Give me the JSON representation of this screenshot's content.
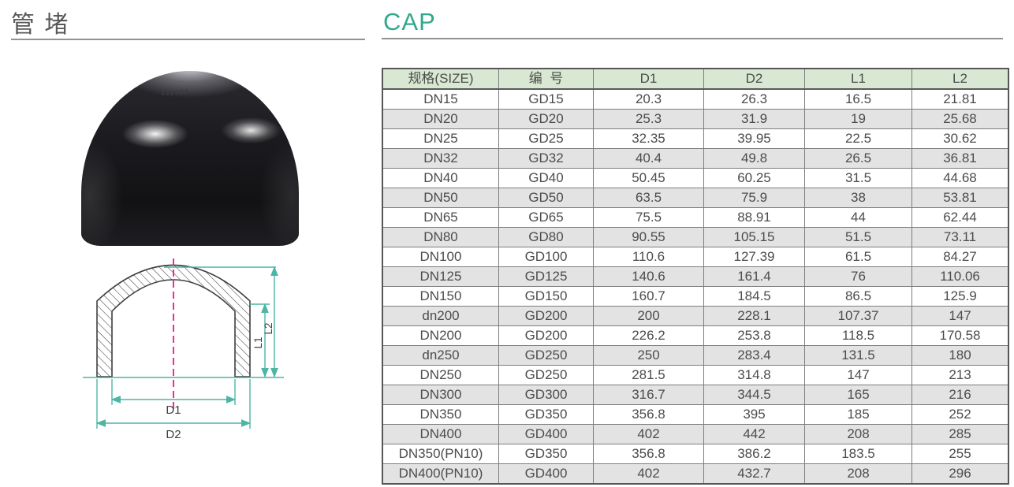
{
  "page": {
    "title_cn": "管 堵",
    "title_en": "CAP",
    "accent_color": "#2fa98c"
  },
  "diagram": {
    "labels": {
      "d1": "D1",
      "d2": "D2",
      "l1": "L1",
      "l2": "L2"
    },
    "colors": {
      "dimension_line": "#4cb6a4",
      "center_line": "#ec1a7f",
      "outline": "#3f3f3f"
    }
  },
  "table": {
    "headers": [
      "规格(SIZE)",
      "编  号",
      "D1",
      "D2",
      "L1",
      "L2"
    ],
    "header_bg": "#d9e8d2",
    "alt_row_bg": "#e3e3e3",
    "rows": [
      [
        "DN15",
        "GD15",
        "20.3",
        "26.3",
        "16.5",
        "21.81"
      ],
      [
        "DN20",
        "GD20",
        "25.3",
        "31.9",
        "19",
        "25.68"
      ],
      [
        "DN25",
        "GD25",
        "32.35",
        "39.95",
        "22.5",
        "30.62"
      ],
      [
        "DN32",
        "GD32",
        "40.4",
        "49.8",
        "26.5",
        "36.81"
      ],
      [
        "DN40",
        "GD40",
        "50.45",
        "60.25",
        "31.5",
        "44.68"
      ],
      [
        "DN50",
        "GD50",
        "63.5",
        "75.9",
        "38",
        "53.81"
      ],
      [
        "DN65",
        "GD65",
        "75.5",
        "88.91",
        "44",
        "62.44"
      ],
      [
        "DN80",
        "GD80",
        "90.55",
        "105.15",
        "51.5",
        "73.11"
      ],
      [
        "DN100",
        "GD100",
        "110.6",
        "127.39",
        "61.5",
        "84.27"
      ],
      [
        "DN125",
        "GD125",
        "140.6",
        "161.4",
        "76",
        "110.06"
      ],
      [
        "DN150",
        "GD150",
        "160.7",
        "184.5",
        "86.5",
        "125.9"
      ],
      [
        "dn200",
        "GD200",
        "200",
        "228.1",
        "107.37",
        "147"
      ],
      [
        "DN200",
        "GD200",
        "226.2",
        "253.8",
        "118.5",
        "170.58"
      ],
      [
        "dn250",
        "GD250",
        "250",
        "283.4",
        "131.5",
        "180"
      ],
      [
        "DN250",
        "GD250",
        "281.5",
        "314.8",
        "147",
        "213"
      ],
      [
        "DN300",
        "GD300",
        "316.7",
        "344.5",
        "165",
        "216"
      ],
      [
        "DN350",
        "GD350",
        "356.8",
        "395",
        "185",
        "252"
      ],
      [
        "DN400",
        "GD400",
        "402",
        "442",
        "208",
        "285"
      ],
      [
        "DN350(PN10)",
        "GD350",
        "356.8",
        "386.2",
        "183.5",
        "255"
      ],
      [
        "DN400(PN10)",
        "GD400",
        "402",
        "432.7",
        "208",
        "296"
      ]
    ]
  }
}
